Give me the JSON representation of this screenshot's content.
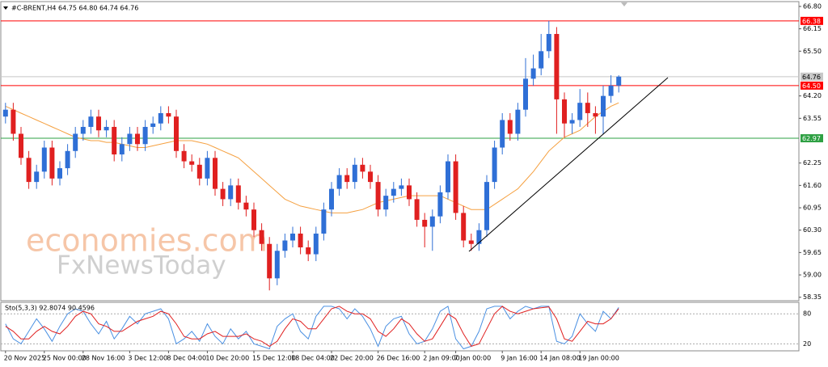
{
  "chart_data": [
    {
      "type": "candlestick",
      "title": "#C-BRENT,H4  64.75 64.80 64.74 64.76",
      "watermark": [
        "economies.com",
        "FxNewsToday"
      ],
      "up_color": "#2f6fd6",
      "down_color": "#e02020",
      "ylim": [
        58.25,
        66.94
      ],
      "yticks": [
        {
          "value": 66.8,
          "label": "66.80"
        },
        66.15,
        {
          "value": 65.5,
          "label": "65.50"
        },
        {
          "value": 64.2,
          "label": "64.20"
        },
        63.55,
        62.25,
        {
          "value": 61.6,
          "label": "61.60"
        },
        60.95,
        {
          "value": 60.3,
          "label": "60.30"
        },
        59.65,
        {
          "value": 59.0,
          "label": "59.00"
        },
        58.35
      ],
      "levels": [
        {
          "value": 66.38,
          "color": "#ff0000",
          "label_color": "#ffffff"
        },
        {
          "value": 64.76,
          "color": "#c8c8c8",
          "label_color": "#000000"
        },
        {
          "value": 64.5,
          "label": "64.50",
          "color": "#ff0000",
          "label_color": "#ffffff"
        },
        {
          "value": 62.97,
          "color": "#2ea043",
          "label_color": "#ffffff"
        }
      ],
      "categories": [
        "20 Nov 2025",
        null,
        null,
        null,
        null,
        "25 Nov 00:00",
        null,
        null,
        null,
        null,
        "28 Nov 16:00",
        null,
        null,
        null,
        null,
        null,
        "3 Dec 12:00",
        null,
        null,
        null,
        null,
        "8 Dec 04:00",
        null,
        null,
        null,
        null,
        "10 Dec 20:00",
        null,
        null,
        null,
        null,
        null,
        "15 Dec 12:00",
        null,
        null,
        null,
        null,
        "18 Dec 04:00",
        null,
        null,
        null,
        null,
        "22 Dec 20:00",
        null,
        null,
        null,
        null,
        null,
        "26 Dec 16:00",
        null,
        null,
        null,
        null,
        null,
        "2 Jan 09:00",
        null,
        null,
        null,
        "7 Jan 00:00",
        null,
        null,
        null,
        null,
        null,
        "9 Jan 16:00",
        null,
        null,
        null,
        null,
        "14 Jan 08:00",
        null,
        null,
        null,
        null,
        "19 Jan 00:00",
        null,
        null,
        null,
        null,
        null
      ],
      "open": [
        63.6,
        63.8,
        63.1,
        62.4,
        61.7,
        62.0,
        62.7,
        61.8,
        62.1,
        62.6,
        63.1,
        63.3,
        63.6,
        63.2,
        63.3,
        62.5,
        62.8,
        63.1,
        62.8,
        63.3,
        63.4,
        63.7,
        63.6,
        62.6,
        62.3,
        62.2,
        61.8,
        62.4,
        61.5,
        61.2,
        61.6,
        61.1,
        60.9,
        60.3,
        59.9,
        58.9,
        59.7,
        60.0,
        60.2,
        59.8,
        59.6,
        60.2,
        60.9,
        61.5,
        61.9,
        61.7,
        62.2,
        62.0,
        61.7,
        60.9,
        61.3,
        61.5,
        61.6,
        61.2,
        60.6,
        60.4,
        60.7,
        61.4,
        62.3,
        60.8,
        60.0,
        59.9,
        60.3,
        61.7,
        62.7,
        63.5,
        63.1,
        63.8,
        64.7,
        65.0,
        65.5,
        66.0,
        64.1,
        63.4,
        63.5,
        64.0,
        63.7,
        63.6,
        64.2,
        64.5
      ],
      "high": [
        64.0,
        64.0,
        63.3,
        62.6,
        62.2,
        62.9,
        62.9,
        62.3,
        62.8,
        63.3,
        63.5,
        63.8,
        63.8,
        63.5,
        63.5,
        63.0,
        63.3,
        63.3,
        63.5,
        63.6,
        63.9,
        63.9,
        63.8,
        62.8,
        62.5,
        62.4,
        62.6,
        62.6,
        61.7,
        61.8,
        61.8,
        61.3,
        61.1,
        60.5,
        60.1,
        59.9,
        60.2,
        60.4,
        60.4,
        60.0,
        60.4,
        61.1,
        61.7,
        62.1,
        62.1,
        62.4,
        62.4,
        62.2,
        61.9,
        61.5,
        61.7,
        61.8,
        61.8,
        61.4,
        60.8,
        60.9,
        61.6,
        62.5,
        62.5,
        61.0,
        60.2,
        60.5,
        61.9,
        62.9,
        63.7,
        63.7,
        64.0,
        65.3,
        65.4,
        66.0,
        66.38,
        66.2,
        64.3,
        63.7,
        64.4,
        64.3,
        63.9,
        64.5,
        64.8,
        64.8
      ],
      "low": [
        63.4,
        62.9,
        62.2,
        61.5,
        61.5,
        61.8,
        61.6,
        61.6,
        61.9,
        62.4,
        62.9,
        63.1,
        63.0,
        63.0,
        62.3,
        62.3,
        62.6,
        62.6,
        62.6,
        63.1,
        63.2,
        63.4,
        62.4,
        62.1,
        62.0,
        61.6,
        61.6,
        61.3,
        61.0,
        61.0,
        60.9,
        60.7,
        60.1,
        59.7,
        58.55,
        58.7,
        59.5,
        59.8,
        59.6,
        59.4,
        59.4,
        60.0,
        60.7,
        61.3,
        61.5,
        61.5,
        61.8,
        61.5,
        60.7,
        60.7,
        61.1,
        61.3,
        61.0,
        60.4,
        59.8,
        59.7,
        60.5,
        61.2,
        60.6,
        59.8,
        59.7,
        59.7,
        60.1,
        61.5,
        62.5,
        62.9,
        62.9,
        63.6,
        64.5,
        64.8,
        65.3,
        63.1,
        63.0,
        63.1,
        63.3,
        63.3,
        63.1,
        63.1,
        64.0,
        64.3
      ],
      "close": [
        63.8,
        63.1,
        62.4,
        61.7,
        62.0,
        62.7,
        61.8,
        62.1,
        62.6,
        63.1,
        63.3,
        63.6,
        63.2,
        63.3,
        62.5,
        62.8,
        63.1,
        62.8,
        63.3,
        63.4,
        63.7,
        63.6,
        62.6,
        62.3,
        62.2,
        61.8,
        62.4,
        61.5,
        61.2,
        61.6,
        61.1,
        60.9,
        60.3,
        59.9,
        58.9,
        59.7,
        60.0,
        60.2,
        59.8,
        59.6,
        60.2,
        60.9,
        61.5,
        61.9,
        61.7,
        62.2,
        62.0,
        61.7,
        60.9,
        61.3,
        61.5,
        61.6,
        61.2,
        60.6,
        60.4,
        60.7,
        61.4,
        62.3,
        60.8,
        60.0,
        59.9,
        60.3,
        61.7,
        62.7,
        63.5,
        63.1,
        63.8,
        64.7,
        65.0,
        65.5,
        66.0,
        64.1,
        63.4,
        63.5,
        64.0,
        63.7,
        63.6,
        64.2,
        64.5,
        64.76
      ],
      "ma": {
        "color": "#f5a040",
        "values": [
          63.9,
          63.8,
          63.7,
          63.6,
          63.5,
          63.4,
          63.3,
          63.2,
          63.1,
          63.0,
          62.95,
          62.9,
          62.9,
          62.85,
          62.85,
          62.8,
          62.75,
          62.7,
          62.7,
          62.75,
          62.8,
          62.85,
          62.9,
          62.9,
          62.9,
          62.85,
          62.8,
          62.7,
          62.6,
          62.5,
          62.4,
          62.2,
          62.0,
          61.8,
          61.6,
          61.4,
          61.2,
          61.1,
          61.0,
          60.95,
          60.9,
          60.85,
          60.8,
          60.8,
          60.8,
          60.85,
          60.9,
          61.0,
          61.1,
          61.15,
          61.2,
          61.25,
          61.3,
          61.3,
          61.3,
          61.3,
          61.3,
          61.2,
          61.1,
          61.0,
          60.9,
          60.9,
          60.9,
          61.05,
          61.2,
          61.35,
          61.5,
          61.75,
          62.0,
          62.3,
          62.6,
          62.8,
          63.0,
          63.1,
          63.2,
          63.4,
          63.6,
          63.75,
          63.9,
          64.0
        ]
      }
    },
    {
      "type": "line",
      "title": "Sto(5,3,3) 92.8074 90.4596",
      "ylim": [
        6,
        103
      ],
      "yticks": [
        80,
        20
      ],
      "series": [
        {
          "color": "#4a90e2",
          "values": [
            60,
            30,
            20,
            45,
            70,
            50,
            25,
            55,
            80,
            90,
            85,
            60,
            40,
            65,
            30,
            50,
            75,
            60,
            80,
            85,
            90,
            70,
            20,
            30,
            45,
            25,
            60,
            35,
            20,
            50,
            30,
            45,
            20,
            15,
            10,
            55,
            70,
            80,
            45,
            30,
            75,
            95,
            95,
            90,
            70,
            90,
            75,
            50,
            15,
            55,
            70,
            75,
            40,
            20,
            25,
            50,
            85,
            95,
            30,
            10,
            15,
            45,
            90,
            95,
            95,
            70,
            85,
            95,
            90,
            95,
            95,
            25,
            20,
            35,
            80,
            60,
            45,
            85,
            70,
            92.8074
          ]
        },
        {
          "color": "#e02020",
          "values": [
            55,
            45,
            30,
            30,
            45,
            55,
            45,
            40,
            55,
            75,
            85,
            80,
            60,
            55,
            45,
            45,
            55,
            65,
            70,
            75,
            85,
            80,
            60,
            35,
            30,
            30,
            40,
            45,
            35,
            35,
            35,
            40,
            30,
            25,
            15,
            25,
            50,
            70,
            65,
            50,
            50,
            70,
            90,
            95,
            85,
            80,
            80,
            70,
            45,
            35,
            50,
            70,
            60,
            40,
            25,
            30,
            55,
            80,
            70,
            40,
            15,
            20,
            50,
            80,
            95,
            85,
            80,
            85,
            90,
            92,
            94,
            70,
            30,
            25,
            45,
            65,
            60,
            60,
            70,
            90.4596
          ]
        }
      ]
    }
  ]
}
